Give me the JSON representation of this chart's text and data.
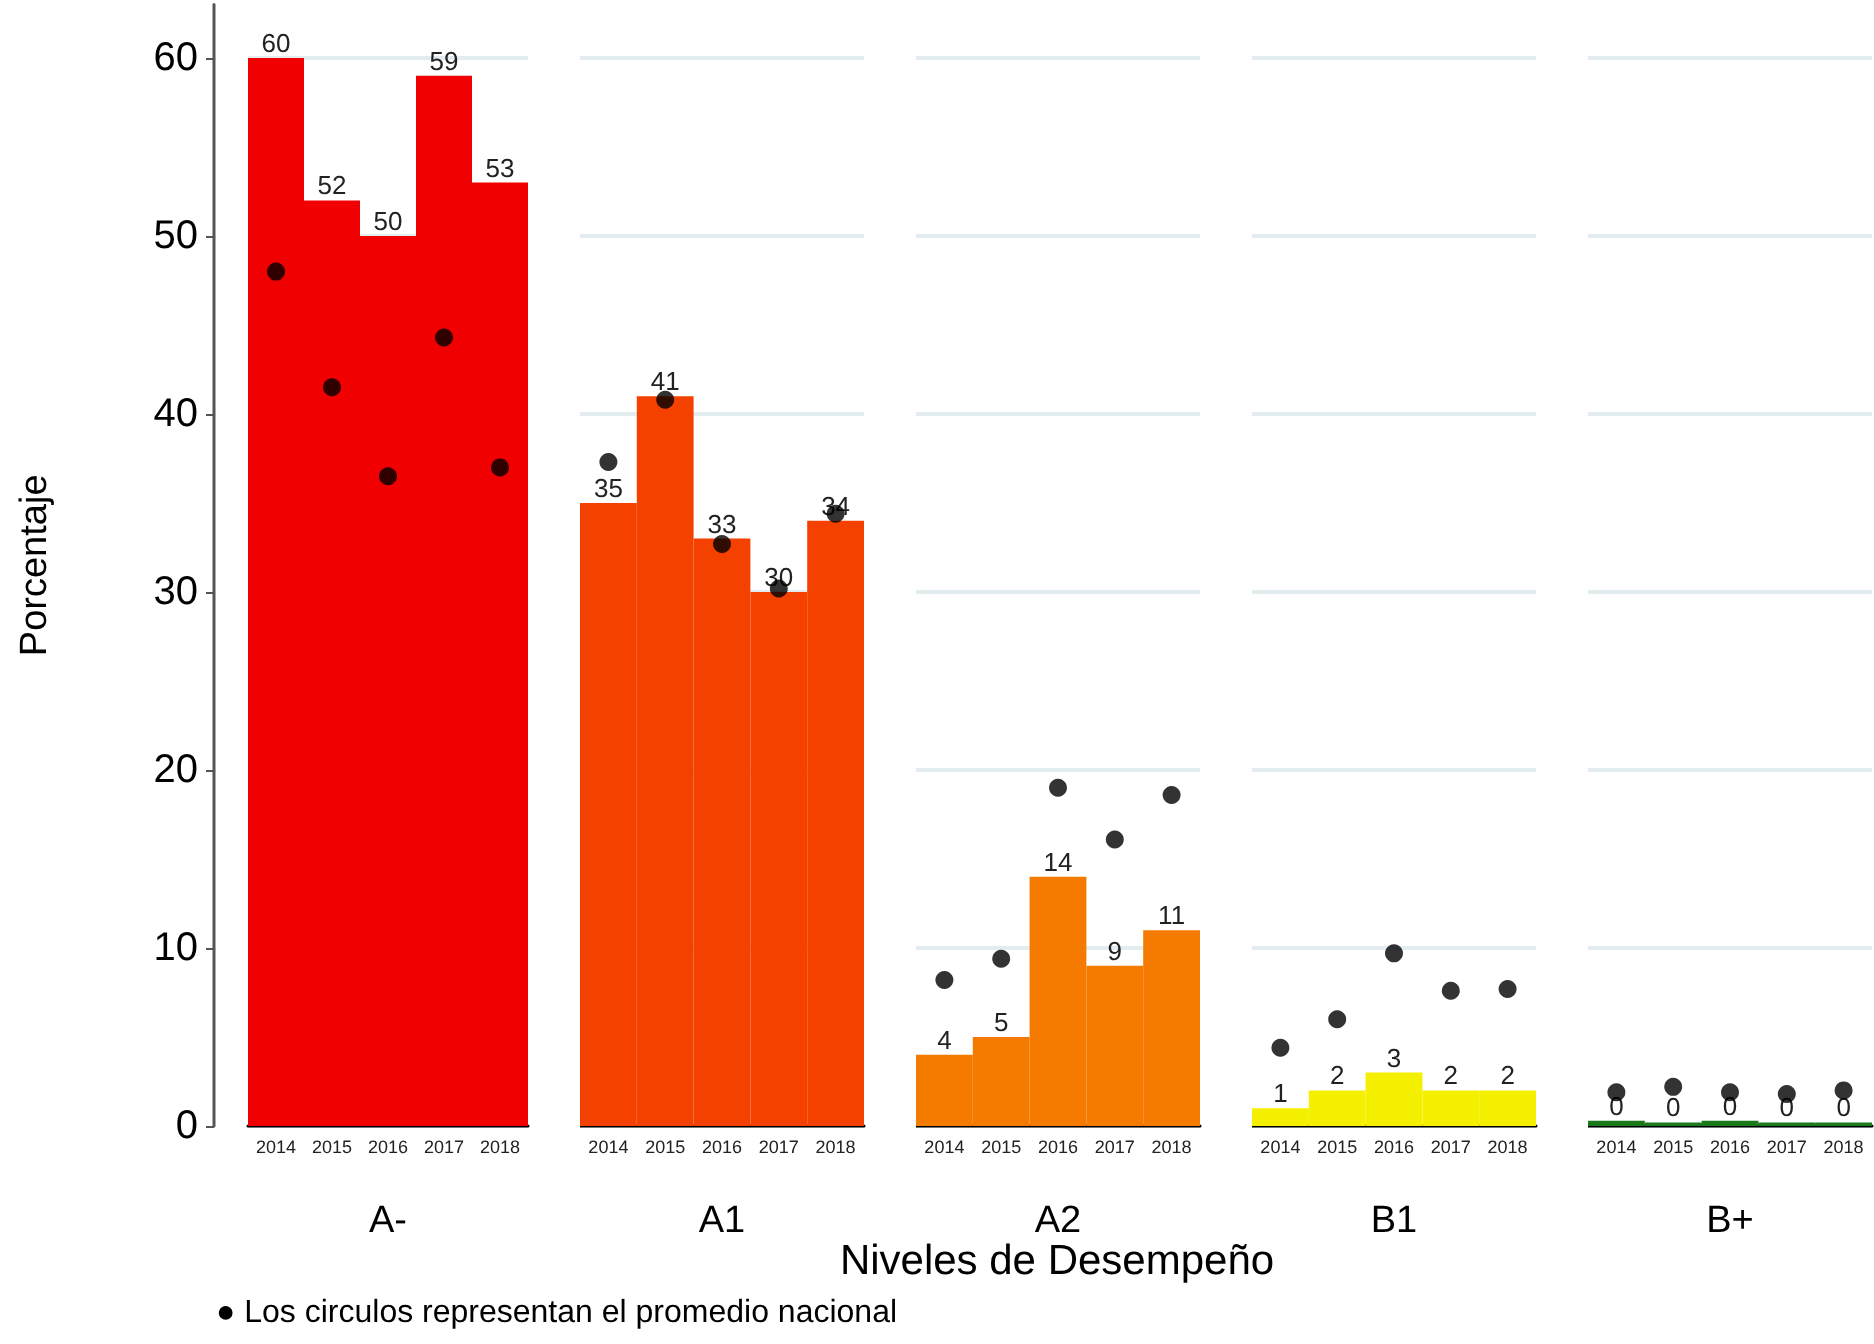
{
  "chart_data": [
    {
      "type": "bar",
      "xlabel": "A-",
      "ylabel": "Porcentaje",
      "categories": [
        "2014",
        "2015",
        "2016",
        "2017",
        "2018"
      ],
      "ylim": [
        0,
        63
      ],
      "yticks": [
        0,
        10,
        20,
        30,
        40,
        50,
        60
      ],
      "grid": "y",
      "marker": "circle",
      "annotations": [
        "Niveles de Desempeño",
        "● Los circulos representan el promedio nacional"
      ],
      "series": [
        {
          "type": "bar",
          "color": "#f00000",
          "values": [
            60,
            52,
            50,
            59,
            53
          ],
          "value_labels": [
            "60",
            "52",
            "50",
            "59",
            "53"
          ]
        },
        {
          "type": "scatter",
          "color": "#000000",
          "values": [
            48,
            41.5,
            36.5,
            44.3,
            37
          ]
        }
      ]
    },
    {
      "type": "bar",
      "xlabel": "A1",
      "categories": [
        "2014",
        "2015",
        "2016",
        "2017",
        "2018"
      ],
      "ylim": [
        0,
        60
      ],
      "yticks": [
        0,
        10,
        20,
        30,
        40,
        50,
        60
      ],
      "grid": "y",
      "marker": "circle",
      "tick_labels": "x",
      "series": [
        {
          "type": "bar",
          "color": "#f44100",
          "values": [
            35,
            41,
            33,
            30,
            34
          ],
          "value_labels": [
            "35",
            "41",
            "33",
            "30",
            "34"
          ]
        },
        {
          "type": "scatter",
          "color": "#000000",
          "values": [
            37.3,
            40.8,
            32.7,
            30.2,
            34.4
          ]
        }
      ]
    },
    {
      "type": "bar",
      "xlabel": "A2",
      "categories": [
        "2014",
        "2015",
        "2016",
        "2017",
        "2018"
      ],
      "ylim": [
        0,
        60
      ],
      "yticks": [
        0,
        10,
        20,
        30,
        40,
        50,
        60
      ],
      "grid": "y",
      "marker": "circle",
      "tick_labels": "x",
      "series": [
        {
          "type": "bar",
          "color": "#f47b00",
          "values": [
            4,
            5,
            14,
            9,
            11
          ],
          "value_labels": [
            "4",
            "5",
            "14",
            "9",
            "11"
          ]
        },
        {
          "type": "scatter",
          "color": "#000000",
          "values": [
            8.2,
            9.4,
            19,
            16.1,
            18.6
          ]
        }
      ]
    },
    {
      "type": "bar",
      "xlabel": "B1",
      "categories": [
        "2014",
        "2015",
        "2016",
        "2017",
        "2018"
      ],
      "ylim": [
        0,
        60
      ],
      "yticks": [
        0,
        10,
        20,
        30,
        40,
        50,
        60
      ],
      "grid": "y",
      "marker": "circle",
      "tick_labels": "x",
      "series": [
        {
          "type": "bar",
          "color": "#f4f000",
          "values": [
            1,
            2,
            3,
            2,
            2
          ],
          "value_labels": [
            "1",
            "2",
            "3",
            "2",
            "2"
          ]
        },
        {
          "type": "scatter",
          "color": "#000000",
          "values": [
            4.4,
            6,
            9.7,
            7.6,
            7.7
          ]
        }
      ]
    },
    {
      "type": "bar",
      "xlabel": "B+",
      "categories": [
        "2014",
        "2015",
        "2016",
        "2017",
        "2018"
      ],
      "ylim": [
        0,
        60
      ],
      "yticks": [
        0,
        10,
        20,
        30,
        40,
        50,
        60
      ],
      "grid": "y",
      "marker": "circle",
      "tick_labels": "x",
      "series": [
        {
          "type": "bar",
          "color": "#1a7a1a",
          "values": [
            0.3,
            0.2,
            0.3,
            0.2,
            0.2
          ],
          "value_labels": [
            "0",
            "0",
            "0",
            "0",
            "0"
          ]
        },
        {
          "type": "scatter",
          "color": "#000000",
          "values": [
            1.9,
            2.2,
            1.9,
            1.8,
            2
          ]
        }
      ]
    }
  ]
}
